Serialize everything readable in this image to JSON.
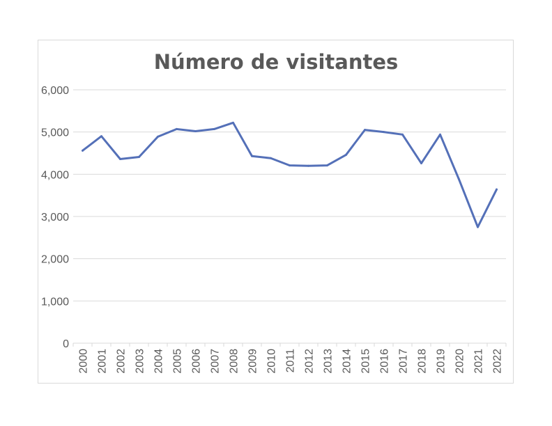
{
  "chart_data": {
    "type": "line",
    "title": "Número de visitantes",
    "xlabel": "",
    "ylabel": "",
    "ylim": [
      0,
      6000
    ],
    "yticks": [
      0,
      1000,
      2000,
      3000,
      4000,
      5000,
      6000
    ],
    "ytick_labels": [
      "0",
      "1,000",
      "2,000",
      "3,000",
      "4,000",
      "5,000",
      "6,000"
    ],
    "grid": true,
    "legend": "none",
    "line_color": "#5470b8",
    "categories": [
      "2000",
      "2001",
      "2002",
      "2003",
      "2004",
      "2005",
      "2006",
      "2007",
      "2008",
      "2009",
      "2010",
      "2011",
      "2012",
      "2013",
      "2014",
      "2015",
      "2016",
      "2017",
      "2018",
      "2019",
      "2020",
      "2021",
      "2022"
    ],
    "series": [
      {
        "values": [
          4560,
          4900,
          4360,
          4410,
          4890,
          5070,
          5020,
          5070,
          5220,
          4430,
          4380,
          4210,
          4200,
          4210,
          4460,
          5050,
          5000,
          4940,
          4260,
          4940,
          3880,
          2750,
          3640
        ]
      }
    ]
  }
}
